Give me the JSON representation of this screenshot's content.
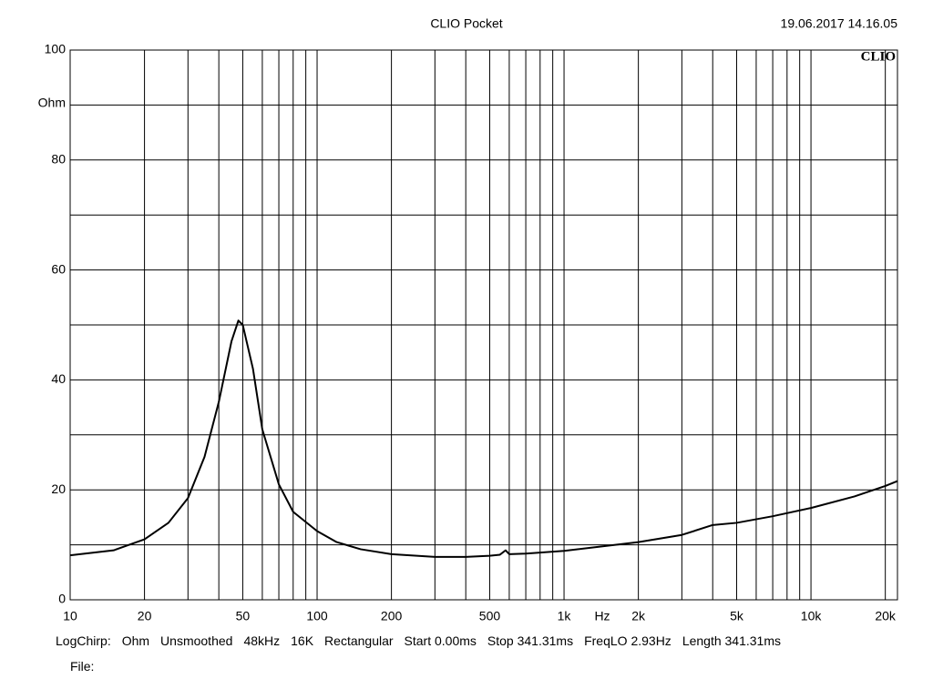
{
  "chart_data": {
    "type": "line",
    "title": "CLIO Pocket",
    "timestamp": "19.06.2017 14.16.05",
    "logo": "CLIO",
    "xlabel": "Hz",
    "ylabel": "Ohm",
    "log_x": true,
    "grid": true,
    "color": "#000000",
    "xlim": [
      10,
      22400
    ],
    "ylim": [
      0,
      100
    ],
    "xticks": [
      10,
      20,
      50,
      100,
      200,
      500,
      {
        "value": 1000,
        "label": "1k"
      },
      {
        "value": 2000,
        "label": "2k"
      },
      {
        "value": 5000,
        "label": "5k"
      },
      {
        "value": 10000,
        "label": "10k"
      },
      {
        "value": 20000,
        "label": "20k"
      }
    ],
    "xminor": [
      30,
      40,
      60,
      70,
      80,
      90,
      300,
      400,
      600,
      700,
      800,
      900,
      3000,
      4000,
      6000,
      7000,
      8000,
      9000
    ],
    "yticks": [
      0,
      20,
      40,
      60,
      80,
      100
    ],
    "yminor": [
      10,
      30,
      50,
      70,
      90
    ],
    "x": [
      10,
      15,
      20,
      25,
      30,
      35,
      40,
      45,
      48,
      50,
      55,
      60,
      70,
      80,
      100,
      120,
      150,
      200,
      300,
      400,
      500,
      550,
      580,
      600,
      700,
      1000,
      2000,
      3000,
      4000,
      5000,
      7000,
      10000,
      15000,
      20000,
      22400
    ],
    "values": [
      8.1,
      9,
      11,
      14,
      18.5,
      26,
      36,
      47,
      50.8,
      50,
      42,
      31,
      21,
      16,
      12.5,
      10.5,
      9.2,
      8.3,
      7.8,
      7.8,
      8,
      8.2,
      9,
      8.3,
      8.4,
      8.9,
      10.5,
      11.8,
      13.6,
      14,
      15.2,
      16.7,
      18.8,
      20.7,
      21.6
    ],
    "settings": [
      "LogChirp:",
      "Ohm",
      "Unsmoothed",
      "48kHz",
      "16K",
      "Rectangular",
      "Start 0.00ms",
      "Stop 341.31ms",
      "FreqLO 2.93Hz",
      "Length 341.31ms"
    ],
    "file_label": "File:"
  }
}
